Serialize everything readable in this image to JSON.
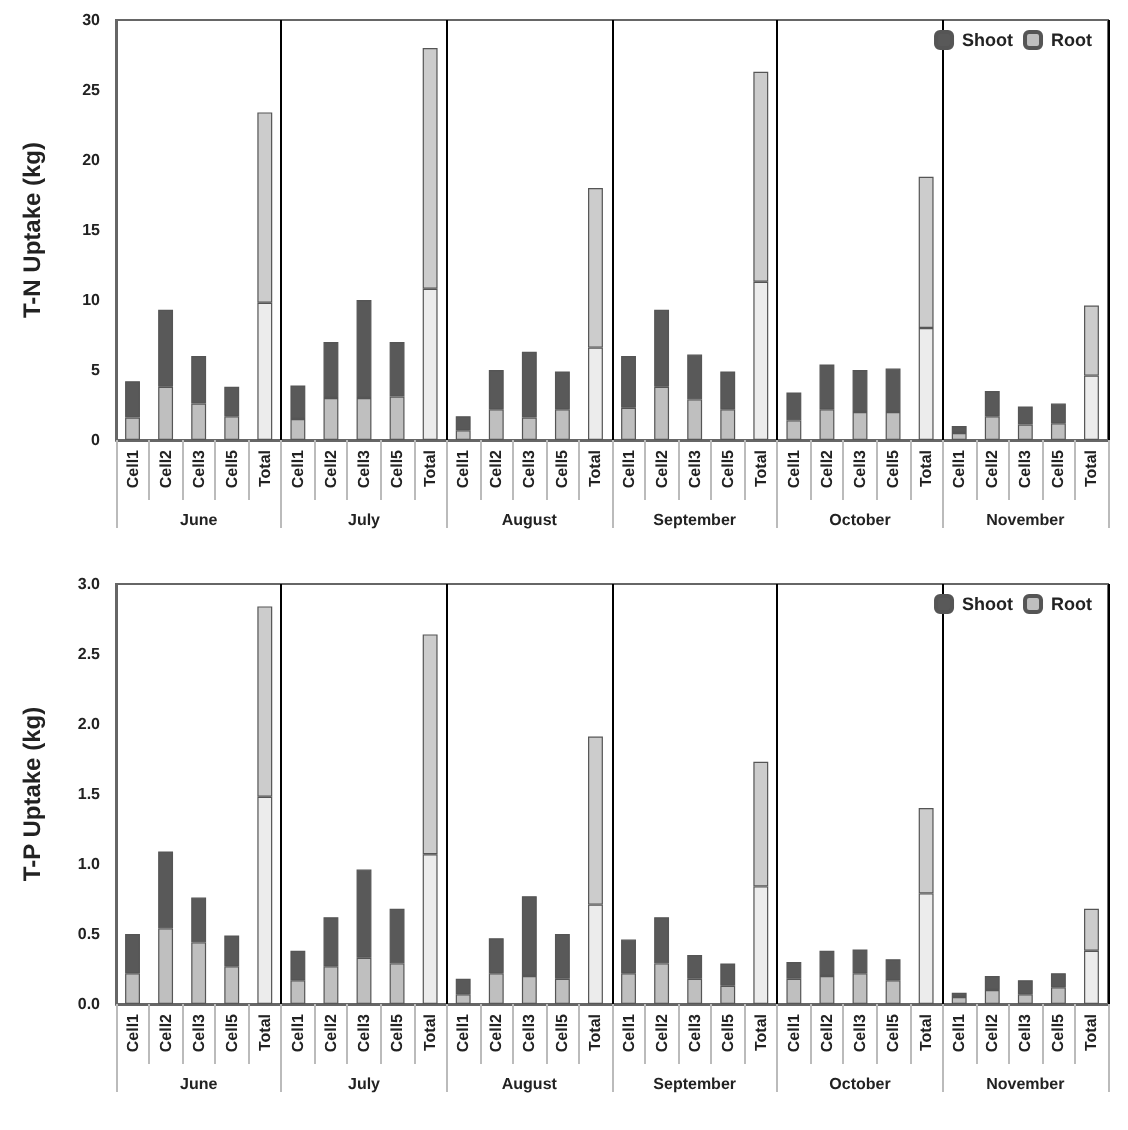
{
  "chart_data": [
    {
      "type": "bar",
      "ylabel": "T-N Uptake (kg)",
      "stacked": true,
      "legend": "top right",
      "ylim": [
        0,
        30
      ],
      "yticks": [
        0,
        5,
        10,
        15,
        20,
        25,
        30
      ],
      "categories": [
        "Cell1",
        "Cell2",
        "Cell3",
        "Cell5",
        "Total",
        "Cell1",
        "Cell2",
        "Cell3",
        "Cell5",
        "Total",
        "Cell1",
        "Cell2",
        "Cell3",
        "Cell5",
        "Total",
        "Cell1",
        "Cell2",
        "Cell3",
        "Cell5",
        "Total",
        "Cell1",
        "Cell2",
        "Cell3",
        "Cell5",
        "Total",
        "Cell1",
        "Cell2",
        "Cell3",
        "Cell5",
        "Total"
      ],
      "annotations": [
        "June",
        "July",
        "August",
        "September",
        "October",
        "November"
      ],
      "series": [
        {
          "name": "Root",
          "color": "#bfbfbf",
          "colors": [
            "#bfbfbf",
            "#bfbfbf",
            "#bfbfbf",
            "#bfbfbf",
            "#ececec",
            "#bfbfbf",
            "#bfbfbf",
            "#bfbfbf",
            "#bfbfbf",
            "#ececec",
            "#bfbfbf",
            "#bfbfbf",
            "#bfbfbf",
            "#bfbfbf",
            "#ececec",
            "#bfbfbf",
            "#bfbfbf",
            "#bfbfbf",
            "#bfbfbf",
            "#ececec",
            "#bfbfbf",
            "#bfbfbf",
            "#bfbfbf",
            "#bfbfbf",
            "#ececec",
            "#bfbfbf",
            "#bfbfbf",
            "#bfbfbf",
            "#bfbfbf",
            "#ececec"
          ],
          "values": [
            1.6,
            3.8,
            2.6,
            1.7,
            9.8,
            1.5,
            3.0,
            3.0,
            3.1,
            10.8,
            0.7,
            2.2,
            1.6,
            2.2,
            6.6,
            2.3,
            3.8,
            2.9,
            2.2,
            11.3,
            1.4,
            2.2,
            2.0,
            2.0,
            8.0,
            0.5,
            1.7,
            1.1,
            1.2,
            4.6
          ]
        },
        {
          "name": "Shoot",
          "color": "#595959",
          "colors": [
            "#595959",
            "#595959",
            "#595959",
            "#595959",
            "#cccccc",
            "#595959",
            "#595959",
            "#595959",
            "#595959",
            "#cccccc",
            "#595959",
            "#595959",
            "#595959",
            "#595959",
            "#cccccc",
            "#595959",
            "#595959",
            "#595959",
            "#595959",
            "#cccccc",
            "#595959",
            "#595959",
            "#595959",
            "#595959",
            "#cccccc",
            "#595959",
            "#595959",
            "#595959",
            "#595959",
            "#cccccc"
          ],
          "values": [
            2.6,
            5.5,
            3.4,
            2.1,
            13.6,
            2.4,
            4.0,
            7.0,
            3.9,
            17.2,
            1.0,
            2.8,
            4.7,
            2.7,
            11.4,
            3.7,
            5.5,
            3.2,
            2.7,
            15.0,
            2.0,
            3.2,
            3.0,
            3.1,
            10.8,
            0.5,
            1.8,
            1.3,
            1.4,
            5.0
          ]
        }
      ]
    },
    {
      "type": "bar",
      "ylabel": "T-P Uptake (kg)",
      "stacked": true,
      "legend": "top right",
      "ylim": [
        0,
        3
      ],
      "yticks": [
        {
          "value": 0,
          "label": "0.0"
        },
        {
          "value": 0.5,
          "label": "0.5"
        },
        {
          "value": 1,
          "label": "1.0"
        },
        {
          "value": 1.5,
          "label": "1.5"
        },
        {
          "value": 2,
          "label": "2.0"
        },
        {
          "value": 2.5,
          "label": "2.5"
        },
        {
          "value": 3,
          "label": "3.0"
        }
      ],
      "categories": [
        "Cell1",
        "Cell2",
        "Cell3",
        "Cell5",
        "Total",
        "Cell1",
        "Cell2",
        "Cell3",
        "Cell5",
        "Total",
        "Cell1",
        "Cell2",
        "Cell3",
        "Cell5",
        "Total",
        "Cell1",
        "Cell2",
        "Cell3",
        "Cell5",
        "Total",
        "Cell1",
        "Cell2",
        "Cell3",
        "Cell5",
        "Total",
        "Cell1",
        "Cell2",
        "Cell3",
        "Cell5",
        "Total"
      ],
      "annotations": [
        "June",
        "July",
        "August",
        "September",
        "October",
        "November"
      ],
      "series": [
        {
          "name": "Root",
          "color": "#bfbfbf",
          "colors": [
            "#bfbfbf",
            "#bfbfbf",
            "#bfbfbf",
            "#bfbfbf",
            "#ececec",
            "#bfbfbf",
            "#bfbfbf",
            "#bfbfbf",
            "#bfbfbf",
            "#ececec",
            "#bfbfbf",
            "#bfbfbf",
            "#bfbfbf",
            "#bfbfbf",
            "#ececec",
            "#bfbfbf",
            "#bfbfbf",
            "#bfbfbf",
            "#bfbfbf",
            "#ececec",
            "#bfbfbf",
            "#bfbfbf",
            "#bfbfbf",
            "#bfbfbf",
            "#ececec",
            "#bfbfbf",
            "#bfbfbf",
            "#bfbfbf",
            "#bfbfbf",
            "#ececec"
          ],
          "values": [
            0.22,
            0.54,
            0.44,
            0.27,
            1.48,
            0.17,
            0.27,
            0.33,
            0.29,
            1.07,
            0.07,
            0.22,
            0.2,
            0.18,
            0.71,
            0.22,
            0.29,
            0.18,
            0.13,
            0.84,
            0.18,
            0.2,
            0.22,
            0.17,
            0.79,
            0.05,
            0.1,
            0.07,
            0.12,
            0.38
          ]
        },
        {
          "name": "Shoot",
          "color": "#595959",
          "colors": [
            "#595959",
            "#595959",
            "#595959",
            "#595959",
            "#cccccc",
            "#595959",
            "#595959",
            "#595959",
            "#595959",
            "#cccccc",
            "#595959",
            "#595959",
            "#595959",
            "#595959",
            "#cccccc",
            "#595959",
            "#595959",
            "#595959",
            "#595959",
            "#cccccc",
            "#595959",
            "#595959",
            "#595959",
            "#595959",
            "#cccccc",
            "#595959",
            "#595959",
            "#595959",
            "#595959",
            "#cccccc"
          ],
          "values": [
            0.28,
            0.55,
            0.32,
            0.22,
            1.36,
            0.21,
            0.35,
            0.63,
            0.39,
            1.57,
            0.11,
            0.25,
            0.57,
            0.32,
            1.2,
            0.24,
            0.33,
            0.17,
            0.16,
            0.89,
            0.12,
            0.18,
            0.17,
            0.15,
            0.61,
            0.03,
            0.1,
            0.1,
            0.1,
            0.3
          ]
        }
      ]
    }
  ]
}
